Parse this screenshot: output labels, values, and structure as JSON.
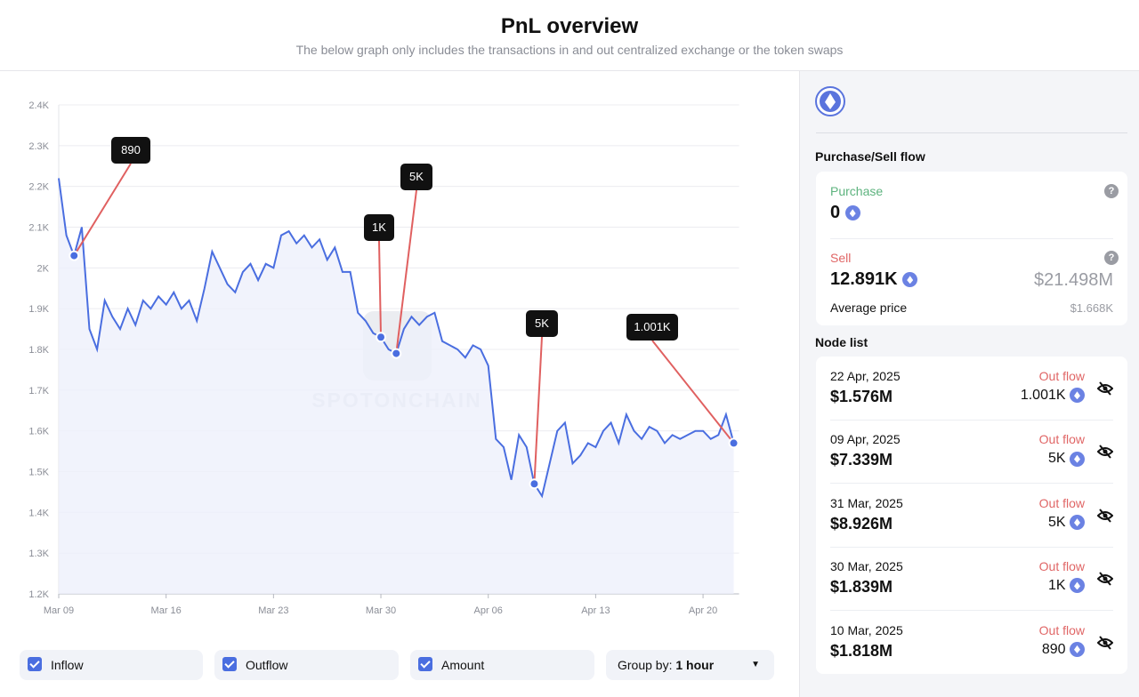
{
  "header": {
    "title": "PnL overview",
    "subtitle": "The below graph only includes the transactions in and out centralized exchange or the token swaps"
  },
  "chart_data": {
    "type": "line",
    "watermark": "SPOTONCHAIN",
    "categories": [
      "Mar 09",
      null,
      null,
      null,
      null,
      null,
      null,
      null,
      null,
      null,
      null,
      null,
      null,
      null,
      "Mar 16",
      null,
      null,
      null,
      null,
      null,
      null,
      null,
      null,
      null,
      null,
      null,
      null,
      null,
      "Mar 23",
      null,
      null,
      null,
      null,
      null,
      null,
      null,
      null,
      null,
      null,
      null,
      null,
      null,
      "Mar 30",
      null,
      null,
      null,
      null,
      null,
      null,
      null,
      null,
      null,
      null,
      null,
      null,
      null,
      "Apr 06",
      null,
      null,
      null,
      null,
      null,
      null,
      null,
      null,
      null,
      null,
      null,
      null,
      null,
      "Apr 13",
      null,
      null,
      null,
      null,
      null,
      null,
      null,
      null,
      null,
      null,
      null,
      null,
      null,
      "Apr 20",
      null,
      null,
      null,
      null
    ],
    "series": [
      {
        "name": "Price",
        "color": "#4a6ee0",
        "values": [
          2220,
          2080,
          2030,
          2100,
          1850,
          1800,
          1920,
          1880,
          1850,
          1900,
          1860,
          1920,
          1900,
          1930,
          1910,
          1940,
          1900,
          1920,
          1870,
          1950,
          2040,
          2000,
          1960,
          1940,
          1990,
          2010,
          1970,
          2010,
          2000,
          2080,
          2090,
          2060,
          2080,
          2050,
          2070,
          2020,
          2050,
          1990,
          1990,
          1890,
          1870,
          1840,
          1830,
          1800,
          1790,
          1850,
          1880,
          1860,
          1880,
          1890,
          1820,
          1810,
          1800,
          1780,
          1810,
          1800,
          1760,
          1580,
          1560,
          1480,
          1590,
          1560,
          1470,
          1440,
          1520,
          1600,
          1620,
          1520,
          1540,
          1570,
          1560,
          1600,
          1620,
          1570,
          1640,
          1600,
          1580,
          1610,
          1600,
          1570,
          1590,
          1580,
          1590,
          1600,
          1600,
          1580,
          1590,
          1640,
          1570
        ]
      }
    ],
    "ylim": [
      1200,
      2400
    ],
    "yticks": [
      {
        "value": 1200,
        "label": "1.2K"
      },
      {
        "value": 1300,
        "label": "1.3K"
      },
      {
        "value": 1400,
        "label": "1.4K"
      },
      {
        "value": 1500,
        "label": "1.5K"
      },
      {
        "value": 1600,
        "label": "1.6K"
      },
      {
        "value": 1700,
        "label": "1.7K"
      },
      {
        "value": 1800,
        "label": "1.8K"
      },
      {
        "value": 1900,
        "label": "1.9K"
      },
      {
        "value": 2000,
        "label": "2K"
      },
      {
        "value": 2100,
        "label": "2.1K"
      },
      {
        "value": 2200,
        "label": "2.2K"
      },
      {
        "value": 2300,
        "label": "2.3K"
      },
      {
        "value": 2400,
        "label": "2.4K"
      }
    ],
    "grid": true
  },
  "controls": {
    "checkboxes": [
      "Inflow",
      "Outflow",
      "Amount"
    ],
    "group_by_label": "Group by:",
    "group_by_value": "1 hour"
  },
  "flow": {
    "title": "Purchase/Sell flow",
    "purchase_label": "Purchase",
    "purchase_value": "0",
    "sell_label": "Sell",
    "sell_value": "12.891K",
    "sell_usd": "$21.498M",
    "avg_label": "Average price",
    "avg_value": "$1.668K"
  },
  "node_list": {
    "title": "Node list",
    "nodes": [
      {
        "date": "22 Apr, 2025",
        "usd": "$1.576M",
        "direction": "Out flow",
        "amount": "1.001K"
      },
      {
        "date": "09 Apr, 2025",
        "usd": "$7.339M",
        "direction": "Out flow",
        "amount": "5K"
      },
      {
        "date": "31 Mar, 2025",
        "usd": "$8.926M",
        "direction": "Out flow",
        "amount": "5K"
      },
      {
        "date": "30 Mar, 2025",
        "usd": "$1.839M",
        "direction": "Out flow",
        "amount": "1K"
      },
      {
        "date": "10 Mar, 2025",
        "usd": "$1.818M",
        "direction": "Out flow",
        "amount": "890"
      }
    ]
  }
}
